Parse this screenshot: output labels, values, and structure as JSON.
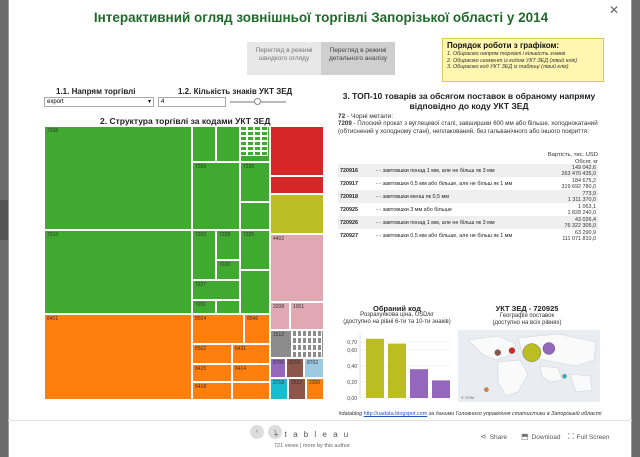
{
  "title": "Інтерактивний огляд зовнішньої торгівлі Запорізької області у 2014",
  "view_toggle": {
    "quick": "Перегляд в режимі швидкого огляду",
    "detailed": "Перегляд в режимі детального аналізу"
  },
  "howto": {
    "heading": "Порядок роботи з графіком:",
    "steps": [
      "1. Обираємо напрям торгівлі і кількість знаків",
      "2. Обираємо сегмент із кодом УКТ ЗЕД (лівий клік)",
      "3. Обираємо код УКТ ЗЕД із таблиці (лівий клік)"
    ]
  },
  "filters": {
    "direction_label": "1.1.  Напрям торгівлі",
    "direction_value": "export",
    "digits_label": "1.2. Кількість знаків УКТ ЗЕД",
    "digits_value": "4"
  },
  "treemap": {
    "title": "2. Структура торгівлі за кодами УКТ ЗЕД",
    "colors": {
      "green": "#3faa2f",
      "orange": "#ff7f0e",
      "red": "#d62728",
      "olive": "#bcbd22",
      "pink": "#e0a8b3",
      "gray": "#8c8c8c",
      "purple": "#9467bd",
      "brown": "#8c564b",
      "lightblue": "#9ecae1",
      "teal": "#17becf"
    },
    "labels": [
      "7208",
      "7207",
      "7209",
      "7210",
      "7202",
      "7228",
      "7220",
      "7227",
      "7201",
      "8401",
      "8504",
      "8546",
      "8502",
      "8431",
      "8415",
      "8414",
      "8418",
      "7225",
      "7226",
      "7325",
      "4402",
      "3208",
      "1001",
      "1512",
      "8705",
      "8716",
      "8702",
      "2716",
      "2612",
      "2306"
    ]
  },
  "top10": {
    "heading": "3. ТОП-10 товарів за обсягом поставок в обраному напряму відповідно до коду УКТ ЗЕД",
    "group_code": "72",
    "group_name": "- Чорні метали:",
    "sel_code": "7209",
    "sel_desc": "- Плоский прокат з вуглецевої сталі, завширшки 600 мм або більше, холоднокатаний (обтиснений у холодному стані), неплакований, без гальванічного або іншого покриття:",
    "col_head_1": "Вартість, тис. USD",
    "col_head_2": "Обсяг, кг",
    "rows": [
      {
        "code": "720916",
        "desc": "- - завтовшки понад 1 мм, але не більш як 3 мм",
        "v1": "149 042,6",
        "v2": "263 470 435,0"
      },
      {
        "code": "720917",
        "desc": "- - завтовшки 0,5 мм або більше, але не більш як 1 мм",
        "v1": "184 675,2",
        "v2": "319 692 780,0"
      },
      {
        "code": "720918",
        "desc": "- - завтовшки менш як 0,5 мм",
        "v1": "773,9",
        "v2": "1 311 370,0"
      },
      {
        "code": "720925",
        "desc": "- - завтовшки 3 мм або більше",
        "v1": "1 063,1",
        "v2": "1 828 240,0"
      },
      {
        "code": "720926",
        "desc": "- - завтовшки понад 1 мм, але не більш як 3 мм",
        "v1": "43 026,4",
        "v2": "76 322 305,0"
      },
      {
        "code": "720927",
        "desc": "- - завтовшки 0,5 мм або більше, але не більш як 1 мм",
        "v1": "63 290,9",
        "v2": "111 071 810,0"
      }
    ]
  },
  "selected": {
    "heading": "Обраний код  УКТ ЗЕД - 720925",
    "bar_heading": "Обраний код",
    "map_heading": "УКТ ЗЕД - 720925",
    "bar_sub_1": "Розрахункова ціна, USD/кг",
    "bar_sub_2": "(доступно на рівні 6-ти та 10-ти знаків)",
    "map_sub_1": "Географія поставок",
    "map_sub_2": "(доступно на всіх рівнях)",
    "map_credit": "© OSM"
  },
  "chart_data": {
    "type": "bar",
    "categories": [
      "",
      "",
      "",
      ""
    ],
    "values": [
      0.74,
      0.68,
      0.36,
      0.22
    ],
    "colors": [
      "#bcbd22",
      "#bcbd22",
      "#9467bd",
      "#9467bd"
    ],
    "ylim": [
      0,
      0.8
    ],
    "yticks": [
      "0,70",
      "0,60",
      "0,40",
      "0,20",
      "0,00"
    ],
    "title": "Обраний код"
  },
  "footer": {
    "prefix": "#datablog",
    "link": "http://uadata.blogspot.com",
    "suffix": "за даними Головного управління статистики в Запорізькій області"
  },
  "bottom": {
    "logo": "+ t a b l e a u",
    "views": "721 views  |  more by this author",
    "share": "Share",
    "download": "Download",
    "fullscreen": "Full Screen"
  },
  "map_points": [
    {
      "lon": 32,
      "lat": 48,
      "size": 9,
      "color": "#bcbd22"
    },
    {
      "lon": 44,
      "lat": 52,
      "size": 6,
      "color": "#9467bd"
    },
    {
      "lon": 8,
      "lat": 48,
      "size": 3,
      "color": "#8c564b"
    },
    {
      "lon": 18,
      "lat": 50,
      "size": 3,
      "color": "#d62728"
    },
    {
      "lon": 0,
      "lat": 12,
      "size": 2,
      "color": "#ff7f0e"
    },
    {
      "lon": 55,
      "lat": 25,
      "size": 2,
      "color": "#17becf"
    }
  ]
}
